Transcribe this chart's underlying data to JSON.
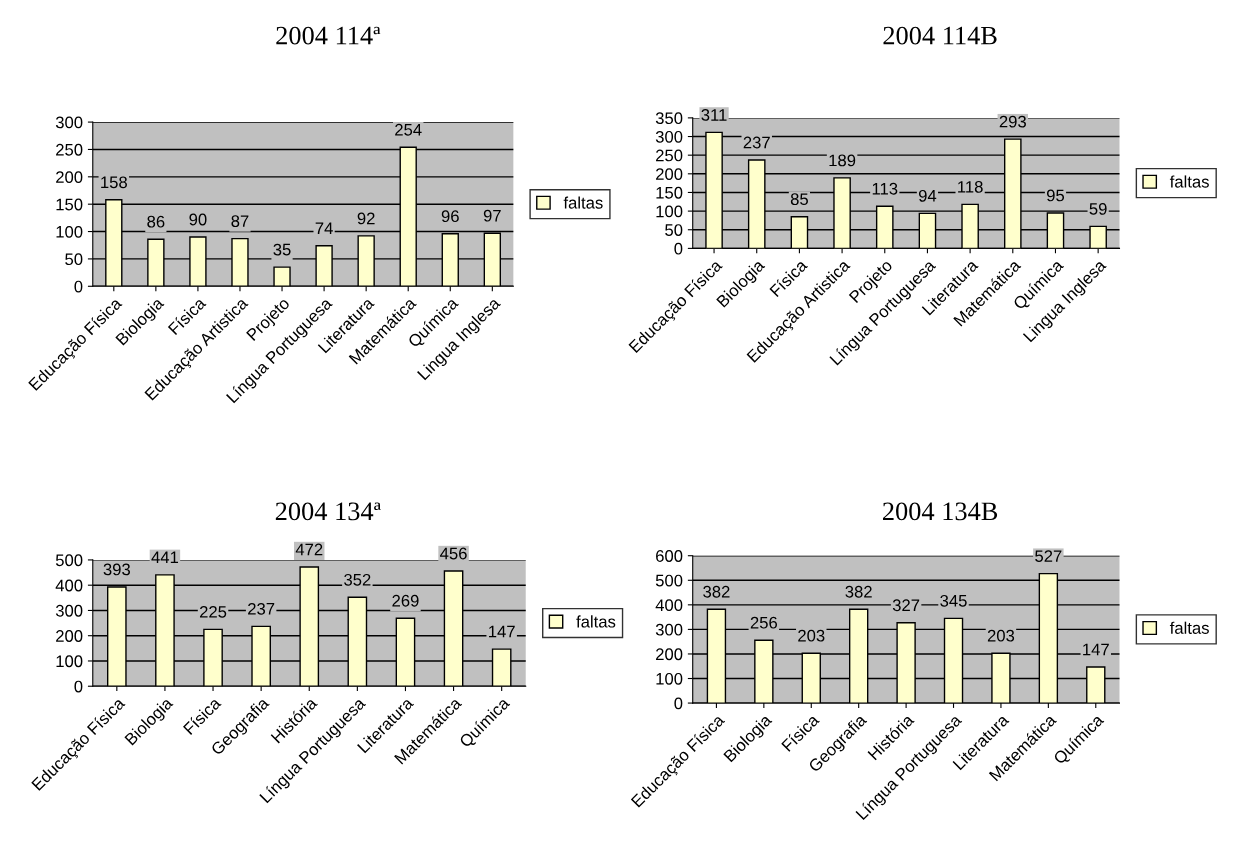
{
  "chart_data": [
    {
      "type": "bar",
      "title": "2004 114ª",
      "categories": [
        "Educação Física",
        "Biologia",
        "Física",
        "Educação Artistica",
        "Projeto",
        "Língua Portuguesa",
        "Literatura",
        "Matemática",
        "Química",
        "Lingua Inglesa"
      ],
      "series": [
        {
          "name": "faltas",
          "color": "#ffffcc",
          "values": [
            158,
            86,
            90,
            87,
            35,
            74,
            92,
            254,
            96,
            97
          ]
        }
      ],
      "ylim": [
        0,
        300
      ],
      "yticks": [
        0,
        50,
        100,
        150,
        200,
        250,
        300
      ],
      "grid": "y",
      "legend": "right",
      "data_labels": true
    },
    {
      "type": "bar",
      "title": "2004 114B",
      "categories": [
        "Educação Física",
        "Biologia",
        "Física",
        "Educação Artistica",
        "Projeto",
        "Língua Portuguesa",
        "Literatura",
        "Matemática",
        "Química",
        "Lingua Inglesa"
      ],
      "series": [
        {
          "name": "faltas",
          "color": "#ffffcc",
          "values": [
            311,
            237,
            85,
            189,
            113,
            94,
            118,
            293,
            95,
            59
          ]
        }
      ],
      "ylim": [
        0,
        350
      ],
      "yticks": [
        0,
        50,
        100,
        150,
        200,
        250,
        300,
        350
      ],
      "grid": "y",
      "legend": "right",
      "data_labels": true
    },
    {
      "type": "bar",
      "title": "2004 134ª",
      "categories": [
        "Educação Física",
        "Biologia",
        "Física",
        "Geografia",
        "História",
        "Língua Portuguesa",
        "Literatura",
        "Matemática",
        "Química"
      ],
      "series": [
        {
          "name": "faltas",
          "color": "#ffffcc",
          "values": [
            393,
            441,
            225,
            237,
            472,
            352,
            269,
            456,
            147
          ]
        }
      ],
      "ylim": [
        0,
        500
      ],
      "yticks": [
        0,
        100,
        200,
        300,
        400,
        500
      ],
      "grid": "y",
      "legend": "right",
      "data_labels": true
    },
    {
      "type": "bar",
      "title": "2004 134B",
      "categories": [
        "Educação Física",
        "Biologia",
        "Física",
        "Geografia",
        "História",
        "Língua Portuguesa",
        "Literatura",
        "Matemática",
        "Química"
      ],
      "series": [
        {
          "name": "faltas",
          "color": "#ffffcc",
          "values": [
            382,
            256,
            203,
            382,
            327,
            345,
            203,
            527,
            147
          ]
        }
      ],
      "ylim": [
        0,
        600
      ],
      "yticks": [
        0,
        100,
        200,
        300,
        400,
        500,
        600
      ],
      "grid": "y",
      "legend": "right",
      "data_labels": true
    }
  ]
}
